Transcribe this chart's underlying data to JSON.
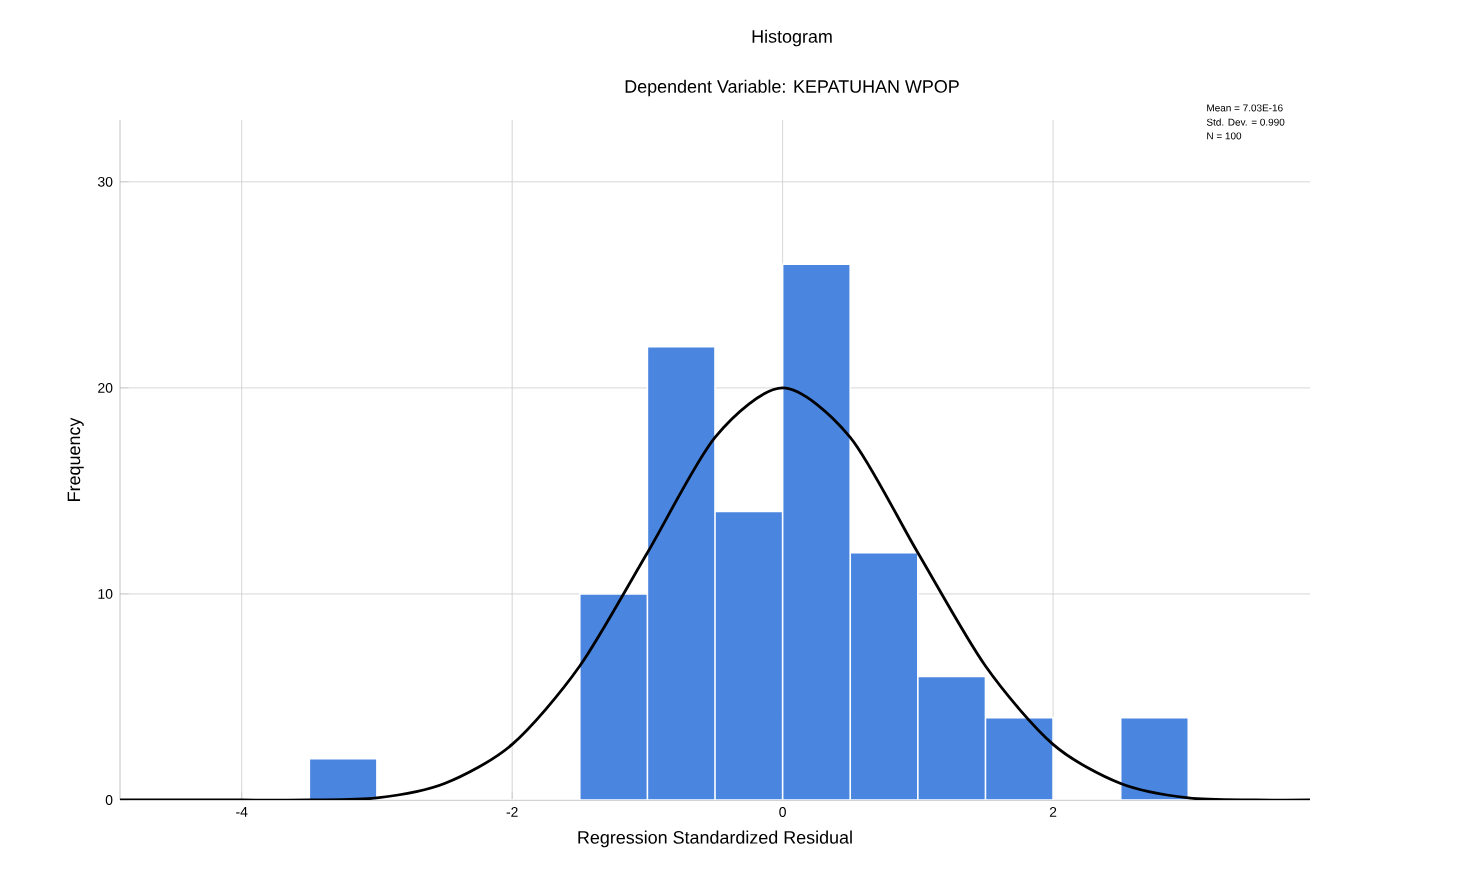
{
  "chart_data": {
    "type": "histogram",
    "title": "Histogram",
    "subtitle": "Dependent Variable: KEPATUHAN WPOP",
    "xlabel": "Regression Standardized Residual",
    "ylabel": "Frequency",
    "bins": [
      -3.5,
      -3,
      -2.5,
      -2,
      -1.5,
      -1,
      -0.5,
      0,
      0.5,
      1,
      1.5,
      2,
      2.5,
      3
    ],
    "values": [
      2,
      0,
      0,
      0,
      10,
      22,
      14,
      26,
      12,
      6,
      4,
      0,
      4
    ],
    "color": "#4a86e0",
    "series": [
      {
        "type": "line",
        "color": "#000000",
        "x": [
          -4.9,
          -4,
          -3.5,
          -3,
          -2.5,
          -2,
          -1.5,
          -1,
          -0.5,
          0,
          0.5,
          1,
          1.5,
          2,
          2.5,
          3,
          3.5,
          3.9
        ],
        "values": [
          0,
          0,
          0,
          0.1,
          0.8,
          2.7,
          6.5,
          12,
          17.6,
          20,
          17.6,
          12,
          6.5,
          2.7,
          0.8,
          0.1,
          0,
          0
        ]
      }
    ],
    "xlim": [
      -4.9,
      3.9
    ],
    "ylim": [
      0,
      33
    ],
    "xticks": [
      -4,
      -2,
      0,
      2
    ],
    "yticks": [
      0,
      10,
      20,
      30
    ],
    "grid": true,
    "annotations": [
      "Mean = 7.03E-16",
      "Std. Dev. = 0.990",
      "N = 100"
    ]
  }
}
